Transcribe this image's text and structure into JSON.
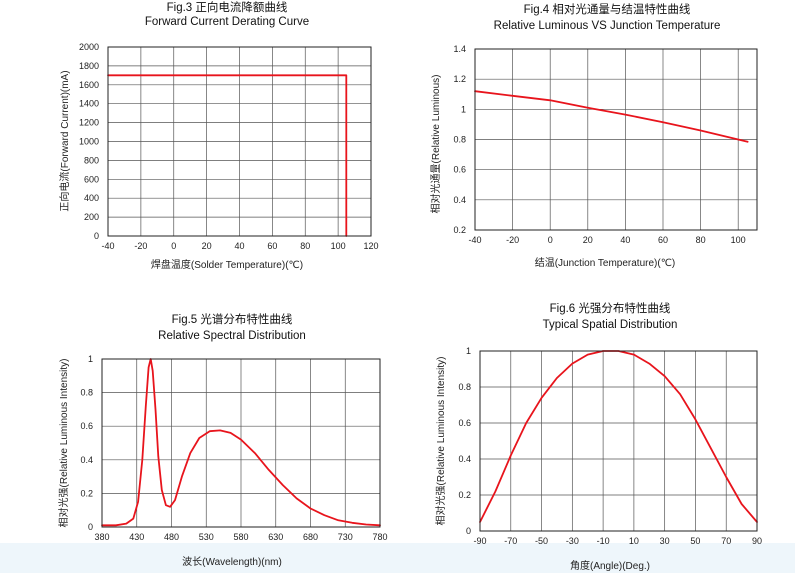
{
  "colors": {
    "series": "#e8141c",
    "grid": "#555555",
    "frame": "#222222"
  },
  "chart_data": [
    {
      "type": "line",
      "title": "Fig.3 正向电流降额曲线",
      "subtitle": "Forward Current Derating Curve",
      "xlabel": "焊盘温度(Solder Temperature)(℃)",
      "ylabel": "正向电流(Forward Current)(mA)",
      "xlim": [
        -40,
        120
      ],
      "ylim": [
        0,
        2000
      ],
      "xticks": [
        -40,
        -20,
        0,
        20,
        40,
        60,
        80,
        100,
        120
      ],
      "yticks": [
        0,
        200,
        400,
        600,
        800,
        1000,
        1200,
        1400,
        1600,
        1800,
        2000
      ],
      "x_tick_labels": [
        "-40",
        "-20",
        "0",
        "20",
        "40",
        "60",
        "80",
        "100",
        "120"
      ],
      "y_tick_labels": [
        "0",
        "200",
        "400",
        "600",
        "800",
        "1000",
        "1200",
        "1400",
        "1600",
        "1800",
        "2000"
      ],
      "grid": true,
      "series": [
        {
          "points": [
            [
              -40,
              1700
            ],
            [
              105,
              1700
            ],
            [
              105,
              0
            ]
          ]
        }
      ]
    },
    {
      "type": "line",
      "title": "Fig.4 相对光通量与结温特性曲线",
      "subtitle": "Relative Luminous VS Junction Temperature",
      "xlabel": "结温(Junction Temperature)(℃)",
      "ylabel": "相对光通量(Relative Luminous)",
      "xlim": [
        -40,
        110
      ],
      "ylim": [
        0.2,
        1.4
      ],
      "xticks": [
        -40,
        -20,
        0,
        20,
        40,
        60,
        80,
        100
      ],
      "yticks": [
        0.2,
        0.4,
        0.6,
        0.8,
        1.0,
        1.2,
        1.4
      ],
      "x_tick_labels": [
        "-40",
        "-20",
        "0",
        "20",
        "40",
        "60",
        "80",
        "100"
      ],
      "y_tick_labels": [
        "0.2",
        "0.4",
        "0.6",
        "0.8",
        "1",
        "1.2",
        "1.4"
      ],
      "grid": true,
      "series": [
        {
          "points": [
            [
              -40,
              1.12
            ],
            [
              -20,
              1.09
            ],
            [
              0,
              1.06
            ],
            [
              20,
              1.01
            ],
            [
              40,
              0.965
            ],
            [
              60,
              0.915
            ],
            [
              80,
              0.86
            ],
            [
              105,
              0.785
            ]
          ]
        }
      ]
    },
    {
      "type": "line",
      "title": "Fig.5 光谱分布特性曲线",
      "subtitle": "Relative Spectral Distribution",
      "xlabel": "波长(Wavelength)(nm)",
      "ylabel": "相对光强(Relative Luminous Intensity)",
      "xlim": [
        380,
        780
      ],
      "ylim": [
        0,
        1
      ],
      "xticks": [
        380,
        430,
        480,
        530,
        580,
        630,
        680,
        730,
        780
      ],
      "yticks": [
        0,
        0.2,
        0.4,
        0.6,
        0.8,
        1
      ],
      "x_tick_labels": [
        "380",
        "430",
        "480",
        "530",
        "580",
        "630",
        "680",
        "730",
        "780"
      ],
      "y_tick_labels": [
        "0",
        "0.2",
        "0.4",
        "0.6",
        "0.8",
        "1"
      ],
      "grid": true,
      "series": [
        {
          "points": [
            [
              380,
              0.01
            ],
            [
              400,
              0.01
            ],
            [
              415,
              0.02
            ],
            [
              425,
              0.05
            ],
            [
              432,
              0.15
            ],
            [
              438,
              0.4
            ],
            [
              443,
              0.72
            ],
            [
              447,
              0.95
            ],
            [
              450,
              1.0
            ],
            [
              453,
              0.93
            ],
            [
              457,
              0.7
            ],
            [
              461,
              0.42
            ],
            [
              466,
              0.22
            ],
            [
              472,
              0.13
            ],
            [
              478,
              0.12
            ],
            [
              485,
              0.16
            ],
            [
              495,
              0.3
            ],
            [
              507,
              0.44
            ],
            [
              520,
              0.53
            ],
            [
              535,
              0.57
            ],
            [
              550,
              0.575
            ],
            [
              565,
              0.56
            ],
            [
              580,
              0.52
            ],
            [
              600,
              0.44
            ],
            [
              620,
              0.34
            ],
            [
              640,
              0.25
            ],
            [
              660,
              0.17
            ],
            [
              680,
              0.11
            ],
            [
              700,
              0.07
            ],
            [
              720,
              0.04
            ],
            [
              740,
              0.025
            ],
            [
              760,
              0.015
            ],
            [
              780,
              0.01
            ]
          ]
        }
      ]
    },
    {
      "type": "line",
      "title": "Fig.6 光强分布特性曲线",
      "subtitle": "Typical Spatial Distribution",
      "xlabel": "角度(Angle)(Deg.)",
      "ylabel": "相对光强(Relative Luminous Intensity)",
      "xlim": [
        -90,
        90
      ],
      "ylim": [
        0,
        1
      ],
      "xticks": [
        -90,
        -70,
        -50,
        -30,
        -10,
        10,
        30,
        50,
        70,
        90
      ],
      "yticks": [
        0,
        0.2,
        0.4,
        0.6,
        0.8,
        1
      ],
      "x_tick_labels": [
        "-90",
        "-70",
        "-50",
        "-30",
        "-10",
        "10",
        "30",
        "50",
        "70",
        "90"
      ],
      "y_tick_labels": [
        "0",
        "0.2",
        "0.4",
        "0.6",
        "0.8",
        "1"
      ],
      "grid": true,
      "series": [
        {
          "points": [
            [
              -90,
              0.05
            ],
            [
              -80,
              0.22
            ],
            [
              -70,
              0.42
            ],
            [
              -60,
              0.6
            ],
            [
              -50,
              0.74
            ],
            [
              -40,
              0.85
            ],
            [
              -30,
              0.93
            ],
            [
              -20,
              0.98
            ],
            [
              -10,
              1.0
            ],
            [
              0,
              1.0
            ],
            [
              10,
              0.98
            ],
            [
              20,
              0.93
            ],
            [
              30,
              0.86
            ],
            [
              40,
              0.76
            ],
            [
              50,
              0.62
            ],
            [
              60,
              0.46
            ],
            [
              70,
              0.3
            ],
            [
              80,
              0.15
            ],
            [
              90,
              0.05
            ]
          ]
        }
      ]
    }
  ]
}
